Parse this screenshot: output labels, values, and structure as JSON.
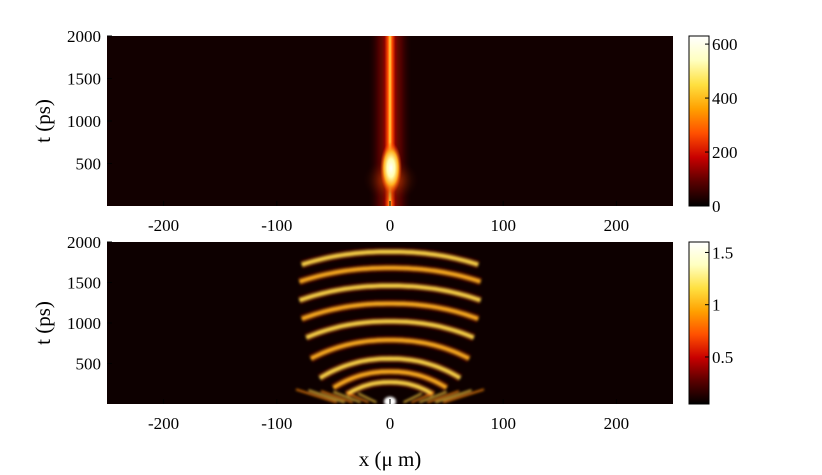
{
  "chart_data": [
    {
      "type": "heatmap",
      "title": "",
      "xlabel": "",
      "ylabel": "t (ps)",
      "xlim": [
        -250,
        250
      ],
      "ylim": [
        0,
        2000
      ],
      "x_ticks": [
        -200,
        -100,
        0,
        100,
        200
      ],
      "x_tick_labels": [
        "-200",
        "-100",
        "0",
        "100",
        "200"
      ],
      "y_ticks": [
        500,
        1000,
        1500,
        2000
      ],
      "y_tick_labels": [
        "500",
        "1000",
        "1500",
        "2000"
      ],
      "colormap": "hot",
      "color_stops": [
        "#000000",
        "#5a0000",
        "#c80000",
        "#ff5000",
        "#ffa000",
        "#ffe040",
        "#ffffc0",
        "#ffffff"
      ],
      "colorbar": {
        "range": [
          0,
          630
        ],
        "ticks": [
          0,
          200,
          400,
          600
        ],
        "tick_labels": [
          "0",
          "200",
          "400",
          "600"
        ]
      },
      "features": [
        {
          "description": "narrow bright vertical filament centered at x = 0",
          "x_center": 0,
          "width_um": 18,
          "t_range": [
            0,
            2000
          ]
        },
        {
          "description": "brightest region near onset",
          "x_center": 0,
          "t_range": [
            200,
            450
          ],
          "intensity": 630
        }
      ]
    },
    {
      "type": "heatmap",
      "title": "",
      "xlabel": "x (μ m)",
      "ylabel": "t (ps)",
      "xlim": [
        -250,
        250
      ],
      "ylim": [
        0,
        2000
      ],
      "x_ticks": [
        -200,
        -100,
        0,
        100,
        200
      ],
      "x_tick_labels": [
        "-200",
        "-100",
        "0",
        "100",
        "200"
      ],
      "y_ticks": [
        500,
        1000,
        1500,
        2000
      ],
      "y_tick_labels": [
        "500",
        "1000",
        "1500",
        "2000"
      ],
      "colormap": "hot",
      "color_stops": [
        "#000000",
        "#5a0000",
        "#c80000",
        "#ff5000",
        "#ffa000",
        "#ffe040",
        "#ffffc0",
        "#ffffff"
      ],
      "colorbar": {
        "range": [
          0.05,
          1.6
        ],
        "ticks": [
          0.5,
          1,
          1.5
        ],
        "tick_labels": [
          "0.5",
          "1",
          "1.5"
        ]
      },
      "features": [
        {
          "description": "nested arch-shaped fringes spreading outward from x = 0",
          "t_range": [
            0,
            2000
          ],
          "x_span": [
            -90,
            90
          ]
        },
        {
          "description": "bright spot at origin",
          "x": 0,
          "t": 30
        }
      ]
    }
  ]
}
